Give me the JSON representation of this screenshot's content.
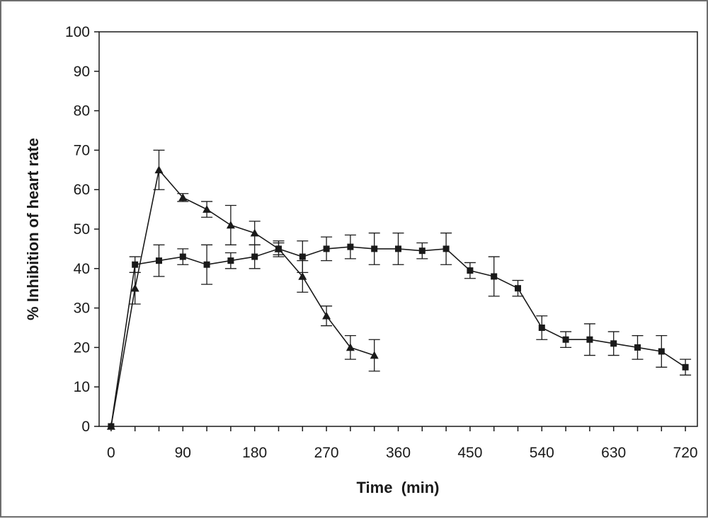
{
  "chart_data": {
    "type": "line",
    "title": "",
    "xlabel": "Time  (min)",
    "ylabel": "% Inhibition of heart rate",
    "xlim": [
      -15,
      735
    ],
    "ylim": [
      0,
      100
    ],
    "x_ticks": [
      0,
      90,
      180,
      270,
      360,
      450,
      540,
      630,
      720
    ],
    "y_ticks": [
      0,
      10,
      20,
      30,
      40,
      50,
      60,
      70,
      80,
      90,
      100
    ],
    "grid": false,
    "legend": "none",
    "series": [
      {
        "marker": "triangle",
        "color": "#1a1a1a",
        "points": [
          {
            "x": 0,
            "y": 0,
            "err": 0
          },
          {
            "x": 30,
            "y": 35,
            "err": 4
          },
          {
            "x": 60,
            "y": 65,
            "err": 5
          },
          {
            "x": 90,
            "y": 58,
            "err": 1
          },
          {
            "x": 120,
            "y": 55,
            "err": 2
          },
          {
            "x": 150,
            "y": 51,
            "err": 5
          },
          {
            "x": 180,
            "y": 49,
            "err": 3
          },
          {
            "x": 210,
            "y": 45,
            "err": 2
          },
          {
            "x": 240,
            "y": 38,
            "err": 4
          },
          {
            "x": 270,
            "y": 28,
            "err": 2.5
          },
          {
            "x": 300,
            "y": 20,
            "err": 3
          },
          {
            "x": 330,
            "y": 18,
            "err": 4
          }
        ]
      },
      {
        "marker": "square",
        "color": "#1a1a1a",
        "points": [
          {
            "x": 0,
            "y": 0,
            "err": 0
          },
          {
            "x": 30,
            "y": 41,
            "err": 2
          },
          {
            "x": 60,
            "y": 42,
            "err": 4
          },
          {
            "x": 90,
            "y": 43,
            "err": 2
          },
          {
            "x": 120,
            "y": 41,
            "err": 5
          },
          {
            "x": 150,
            "y": 42,
            "err": 2
          },
          {
            "x": 180,
            "y": 43,
            "err": 3
          },
          {
            "x": 210,
            "y": 45,
            "err": 1.5
          },
          {
            "x": 240,
            "y": 43,
            "err": 4
          },
          {
            "x": 270,
            "y": 45,
            "err": 3
          },
          {
            "x": 300,
            "y": 45.5,
            "err": 3
          },
          {
            "x": 330,
            "y": 45,
            "err": 4
          },
          {
            "x": 360,
            "y": 45,
            "err": 4
          },
          {
            "x": 390,
            "y": 44.5,
            "err": 2
          },
          {
            "x": 420,
            "y": 45,
            "err": 4
          },
          {
            "x": 450,
            "y": 39.5,
            "err": 2
          },
          {
            "x": 480,
            "y": 38,
            "err": 5
          },
          {
            "x": 510,
            "y": 35,
            "err": 2
          },
          {
            "x": 540,
            "y": 25,
            "err": 3
          },
          {
            "x": 570,
            "y": 22,
            "err": 2
          },
          {
            "x": 600,
            "y": 22,
            "err": 4
          },
          {
            "x": 630,
            "y": 21,
            "err": 3
          },
          {
            "x": 660,
            "y": 20,
            "err": 3
          },
          {
            "x": 690,
            "y": 19,
            "err": 4
          },
          {
            "x": 720,
            "y": 15,
            "err": 2
          }
        ]
      }
    ]
  }
}
